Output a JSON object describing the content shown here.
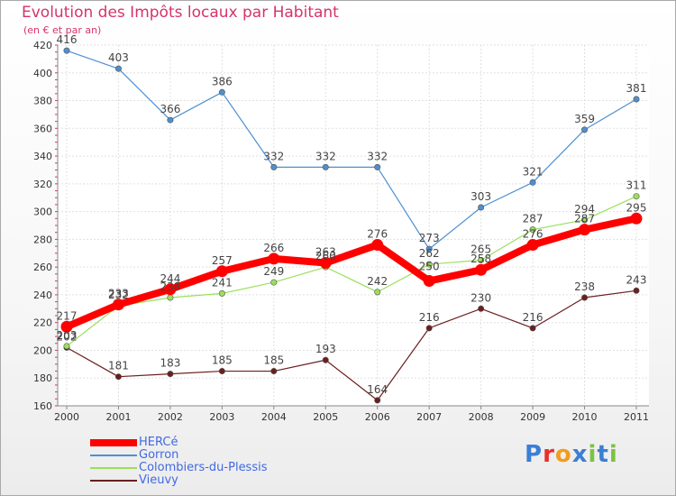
{
  "header": {
    "title": "Evolution des Impôts locaux par Habitant",
    "subtitle": "(en € et par an)"
  },
  "chart_data": {
    "type": "line",
    "title": "Evolution des Impôts locaux par Habitant",
    "subtitle": "(en € et par an)",
    "xlabel": "",
    "ylabel": "",
    "categories": [
      "2000",
      "2001",
      "2002",
      "2003",
      "2004",
      "2005",
      "2006",
      "2007",
      "2008",
      "2009",
      "2010",
      "2011"
    ],
    "ylim": [
      160,
      420
    ],
    "yticks": [
      160,
      180,
      200,
      220,
      240,
      260,
      280,
      300,
      320,
      340,
      360,
      380,
      400,
      420
    ],
    "grid": true,
    "legend_position": "bottom-left",
    "series": [
      {
        "name": "HERCé",
        "color": "#ff0000",
        "values": [
          217,
          233,
          244,
          257,
          266,
          263,
          276,
          250,
          258,
          276,
          287,
          295
        ]
      },
      {
        "name": "Gorron",
        "color": "#4f8fcf",
        "values": [
          416,
          403,
          366,
          386,
          332,
          332,
          332,
          273,
          303,
          321,
          359,
          381
        ]
      },
      {
        "name": "Colombiers-du-Plessis",
        "color": "#99e05a",
        "values": [
          203,
          232,
          238,
          241,
          249,
          260,
          242,
          262,
          265,
          287,
          294,
          311
        ]
      },
      {
        "name": "Vieuvy",
        "color": "#6b1e1e",
        "values": [
          202,
          181,
          183,
          185,
          185,
          193,
          164,
          216,
          230,
          216,
          238,
          243
        ]
      }
    ]
  },
  "logo": {
    "text": "Proxiti",
    "colors": [
      "#3a7fd5",
      "#e8302a",
      "#f29c1f",
      "#3a7fd5",
      "#7cc242",
      "#3a7fd5",
      "#7cc242"
    ]
  }
}
